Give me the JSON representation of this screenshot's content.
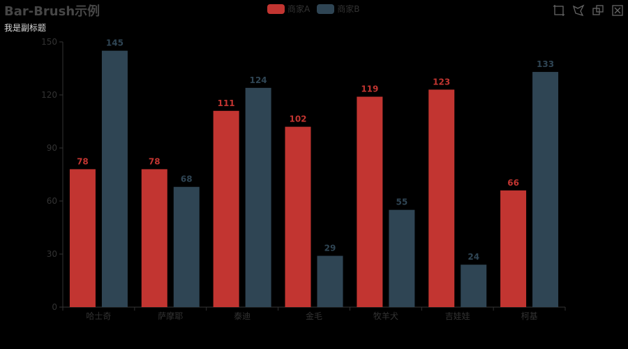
{
  "chart_data": {
    "type": "bar",
    "title": "Bar-Brush示例",
    "subtitle": "我是副标题",
    "categories": [
      "哈士奇",
      "萨摩耶",
      "泰迪",
      "金毛",
      "牧羊犬",
      "吉娃娃",
      "柯基"
    ],
    "series": [
      {
        "name": "商家A",
        "values": [
          78,
          78,
          111,
          102,
          119,
          123,
          66
        ],
        "color": "#c23531"
      },
      {
        "name": "商家B",
        "values": [
          145,
          68,
          124,
          29,
          55,
          24,
          133
        ],
        "color": "#2f4554"
      }
    ],
    "ylim": [
      0,
      150
    ],
    "yticks": [
      0,
      30,
      60,
      90,
      120,
      150
    ],
    "legend_position": "top-center",
    "axis_color": "#333333",
    "grid": false
  },
  "toolbox": {
    "icons": [
      "rect-brush-icon",
      "polygon-brush-icon",
      "keep-selection-icon",
      "clear-selection-icon"
    ]
  }
}
